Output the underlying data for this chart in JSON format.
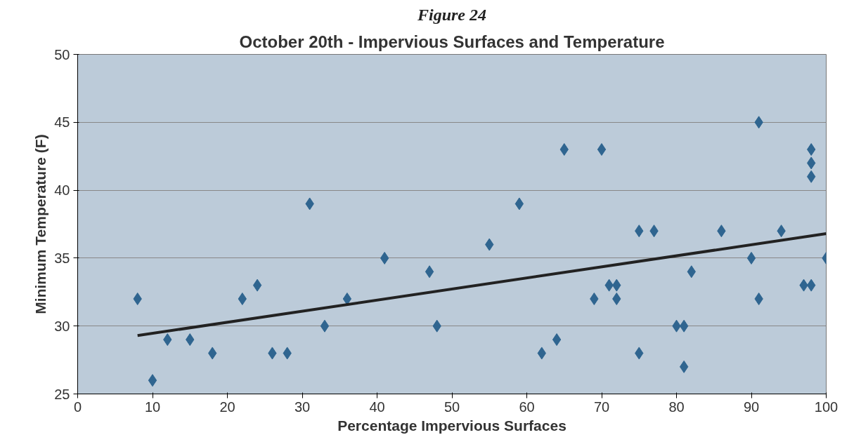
{
  "chart_data": {
    "type": "scatter",
    "title": "Figure 24",
    "subtitle": "October 20th - Impervious Surfaces and Temperature",
    "xlabel": "Percentage Impervious Surfaces",
    "ylabel": "Minimum Temperature (F)",
    "series": [
      {
        "color": "#2f6590",
        "marker": "diamond",
        "x": [
          8,
          10,
          12,
          15,
          18,
          22,
          24,
          26,
          28,
          31,
          33,
          36,
          41,
          47,
          48,
          55,
          59,
          62,
          64,
          65,
          69,
          70,
          71,
          72,
          72,
          75,
          75,
          77,
          80,
          81,
          81,
          82,
          86,
          90,
          91,
          91,
          94,
          97,
          98,
          98,
          98,
          98,
          100
        ],
        "values": [
          32,
          26,
          29,
          29,
          28,
          32,
          33,
          28,
          28,
          39,
          30,
          32,
          35,
          34,
          30,
          36,
          39,
          28,
          29,
          43,
          32,
          43,
          33,
          33,
          32,
          37,
          28,
          37,
          30,
          30,
          27,
          34,
          37,
          35,
          45,
          32,
          37,
          33,
          43,
          42,
          41,
          33,
          35
        ]
      },
      {
        "type": "line",
        "color": "#222222",
        "line_style": "solid",
        "x": [
          8,
          100
        ],
        "values": [
          29.3,
          36.8
        ]
      }
    ],
    "xlim": [
      0,
      100
    ],
    "xticks": [
      0,
      10,
      20,
      30,
      40,
      50,
      60,
      70,
      80,
      90,
      100
    ],
    "ylim": [
      25,
      50
    ],
    "yticks": [
      25,
      30,
      35,
      40,
      45,
      50
    ],
    "grid": "y"
  }
}
